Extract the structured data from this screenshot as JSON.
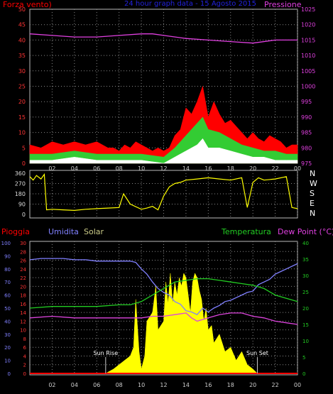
{
  "colors": {
    "background": "#000000",
    "wind_gust": "#ff0000",
    "wind_avg": "#33cc33",
    "wind_min": "#ffffff",
    "pressure": "#e040e0",
    "direction": "#ffff00",
    "humidity": "#8080ff",
    "temperature": "#22cc22",
    "dewpoint": "#dd44dd",
    "solar": "#ffff00",
    "rain": "#ff0000",
    "frame": "#bbbbbb",
    "grid": "#888888"
  },
  "chart_data": [
    {
      "type": "area",
      "title": "24 hour graph data - 15 Agosto 2015",
      "left_label": "Forza vento)",
      "right_label": "Pressione",
      "x_tick_labels": [
        "02",
        "04",
        "06",
        "08",
        "10",
        "12",
        "14",
        "16",
        "18",
        "20",
        "22",
        "00"
      ],
      "y_left_ticks": [
        0,
        5,
        10,
        15,
        20,
        25,
        30,
        35,
        40,
        45,
        50
      ],
      "y_right_ticks": [
        975,
        980,
        985,
        990,
        995,
        1000,
        1005,
        1010,
        1015,
        1020,
        1025
      ],
      "ylim_left": [
        0,
        50
      ],
      "ylim_right": [
        975,
        1025
      ],
      "xlim_hours": [
        0,
        24
      ],
      "grid": true,
      "series": [
        {
          "key": "gust",
          "x": [
            0,
            1,
            2,
            3,
            4,
            5,
            6,
            7,
            7.5,
            8,
            8.5,
            9,
            9.5,
            10,
            10.5,
            11,
            11.5,
            12,
            12.5,
            13,
            13.5,
            14,
            14.5,
            15,
            15.5,
            16,
            16.5,
            17,
            17.5,
            18,
            18.5,
            19,
            19.5,
            20,
            20.5,
            21,
            21.5,
            22,
            22.5,
            23,
            23.5,
            24
          ],
          "values": [
            6,
            5,
            7,
            6,
            7,
            6,
            7,
            5,
            5,
            4,
            6,
            5,
            7,
            6,
            5,
            4,
            5,
            4,
            5,
            9,
            11,
            18,
            16,
            20,
            25,
            15,
            20,
            16,
            13,
            14,
            12,
            10,
            8,
            10,
            8,
            7,
            9,
            8,
            7,
            5,
            6,
            6
          ]
        },
        {
          "key": "avg",
          "x": [
            0,
            2,
            4,
            6,
            8,
            10,
            12,
            13,
            14,
            15,
            15.5,
            16,
            17,
            18,
            19,
            20,
            21,
            22,
            23,
            24
          ],
          "values": [
            3,
            3,
            4,
            3,
            3,
            3,
            2,
            5,
            9,
            13,
            15,
            11,
            10,
            8,
            6,
            5,
            4,
            4,
            3,
            3
          ]
        },
        {
          "key": "min",
          "x": [
            0,
            2,
            4,
            6,
            8,
            10,
            12,
            13,
            14,
            15,
            15.5,
            16,
            17,
            18,
            19,
            20,
            21,
            22,
            23,
            24
          ],
          "values": [
            1,
            1,
            2,
            1,
            1,
            1,
            0,
            2,
            4,
            6,
            8,
            5,
            5,
            4,
            3,
            2,
            2,
            1,
            1,
            1
          ]
        },
        {
          "key": "pressure",
          "x": [
            0,
            2,
            4,
            6,
            8,
            10,
            11,
            12,
            14,
            16,
            18,
            20,
            22,
            24
          ],
          "values": [
            1017,
            1016.5,
            1016,
            1016,
            1016.5,
            1017,
            1017,
            1016.5,
            1015.5,
            1015,
            1014.5,
            1014,
            1015,
            1015
          ]
        }
      ]
    },
    {
      "type": "scatter",
      "title": "",
      "y_ticks": [
        0,
        90,
        180,
        270,
        360
      ],
      "ylim": [
        0,
        360
      ],
      "xlim_hours": [
        0,
        24
      ],
      "x_tick_labels": [
        "02",
        "04",
        "06",
        "08",
        "10",
        "12",
        "14",
        "16",
        "18",
        "20",
        "22",
        "00"
      ],
      "compass_labels": [
        "N",
        "W",
        "S",
        "E",
        "N"
      ],
      "grid": true,
      "series": [
        {
          "key": "direction",
          "x": [
            0,
            0.3,
            0.6,
            1,
            1.3,
            1.5,
            2,
            3,
            4,
            5,
            6,
            7,
            8,
            8.4,
            9,
            10,
            10.5,
            11,
            11.5,
            12,
            12.5,
            13,
            13.5,
            14,
            15,
            16,
            17,
            18,
            19,
            19.5,
            20,
            20.5,
            21,
            22,
            23,
            23.5,
            24
          ],
          "values": [
            330,
            300,
            340,
            310,
            350,
            40,
            45,
            40,
            35,
            45,
            50,
            55,
            60,
            180,
            90,
            45,
            55,
            70,
            40,
            160,
            240,
            270,
            280,
            300,
            310,
            320,
            310,
            300,
            320,
            60,
            280,
            320,
            300,
            310,
            330,
            60,
            50
          ]
        }
      ]
    },
    {
      "type": "line",
      "title": "",
      "legend": [
        "Pioggia",
        "Umidita",
        "Solar",
        "Temperatura",
        "Dew Point (°C)"
      ],
      "x_tick_labels": [
        "02",
        "04",
        "06",
        "08",
        "10",
        "12",
        "14",
        "16",
        "18",
        "20",
        "22",
        "00"
      ],
      "y_ticks_humidity": [
        0,
        10,
        20,
        30,
        40,
        50,
        60,
        70,
        80,
        90,
        100
      ],
      "y_ticks_rain": [
        0,
        2,
        4,
        6,
        8,
        10,
        12,
        14,
        16,
        18,
        20,
        22,
        24,
        26,
        28,
        30
      ],
      "y_ticks_temp": [
        0,
        5,
        10,
        15,
        20,
        25,
        30,
        35,
        40
      ],
      "ylim_humidity": [
        0,
        100
      ],
      "ylim_rain": [
        0,
        30
      ],
      "ylim_temp": [
        0,
        40
      ],
      "xlim_hours": [
        0,
        24
      ],
      "grid": true,
      "annotations": [
        {
          "text": "Sun Rise",
          "x_hours": 6.8
        },
        {
          "text": "Sun Set",
          "x_hours": 20.4
        }
      ],
      "series": [
        {
          "key": "humidity",
          "x": [
            0,
            1,
            2,
            3,
            4,
            5,
            6,
            7,
            8,
            9,
            9.5,
            10,
            10.5,
            11,
            11.5,
            12,
            12.5,
            13,
            13.5,
            14,
            14.5,
            15,
            15.5,
            16,
            16.5,
            17,
            17.5,
            18,
            18.5,
            19,
            19.5,
            20,
            20.5,
            21,
            21.5,
            22,
            22.5,
            23,
            24
          ],
          "values": [
            87,
            88,
            88,
            88,
            87,
            87,
            86,
            86,
            86,
            86,
            85,
            80,
            76,
            70,
            65,
            62,
            60,
            55,
            53,
            48,
            47,
            45,
            50,
            47,
            50,
            52,
            55,
            56,
            58,
            60,
            62,
            63,
            68,
            70,
            72,
            76,
            78,
            80,
            84
          ]
        },
        {
          "key": "temperature",
          "x": [
            0,
            2,
            4,
            6,
            8,
            9,
            10,
            11,
            12,
            13,
            14,
            15,
            16,
            17,
            18,
            19,
            20,
            21,
            22,
            23,
            24
          ],
          "values": [
            20,
            20.5,
            20.5,
            20.5,
            21,
            21,
            22,
            24,
            26,
            28,
            28.5,
            29,
            29,
            28.5,
            28,
            27.5,
            27,
            26,
            24,
            23,
            22
          ]
        },
        {
          "key": "dewpoint",
          "x": [
            0,
            2,
            4,
            6,
            8,
            10,
            11,
            12,
            13,
            14,
            14.5,
            15,
            16,
            17,
            18,
            19,
            20,
            21,
            22,
            23,
            24
          ],
          "values": [
            17,
            17.5,
            17,
            17,
            17,
            17,
            17.5,
            17.5,
            18,
            18.5,
            17,
            16,
            17,
            18,
            18.5,
            18.5,
            17.5,
            17,
            16,
            15.5,
            15
          ]
        },
        {
          "key": "solar",
          "x": [
            6.8,
            7.5,
            8,
            8.5,
            9,
            9.3,
            9.5,
            9.8,
            10,
            10.3,
            10.5,
            11,
            11.3,
            11.5,
            12,
            12.2,
            12.4,
            12.6,
            12.8,
            13,
            13.2,
            13.4,
            13.6,
            13.8,
            14,
            14.2,
            14.4,
            14.6,
            14.8,
            15,
            15.2,
            15.4,
            15.6,
            15.8,
            16,
            16.3,
            16.5,
            17,
            17.5,
            18,
            18.5,
            19,
            19.5,
            20,
            20.4
          ],
          "values": [
            0,
            1,
            2,
            3,
            4,
            6,
            17,
            5,
            1,
            4,
            12,
            14,
            20,
            10,
            12,
            21,
            16,
            23,
            16,
            21,
            18,
            22,
            20,
            23,
            22,
            18,
            14,
            21,
            23,
            22,
            19,
            17,
            12,
            15,
            10,
            11,
            7,
            9,
            5,
            6,
            3,
            5,
            2,
            1,
            0
          ]
        },
        {
          "key": "rain",
          "x": [
            0,
            24
          ],
          "values": [
            0,
            0
          ]
        }
      ]
    }
  ]
}
